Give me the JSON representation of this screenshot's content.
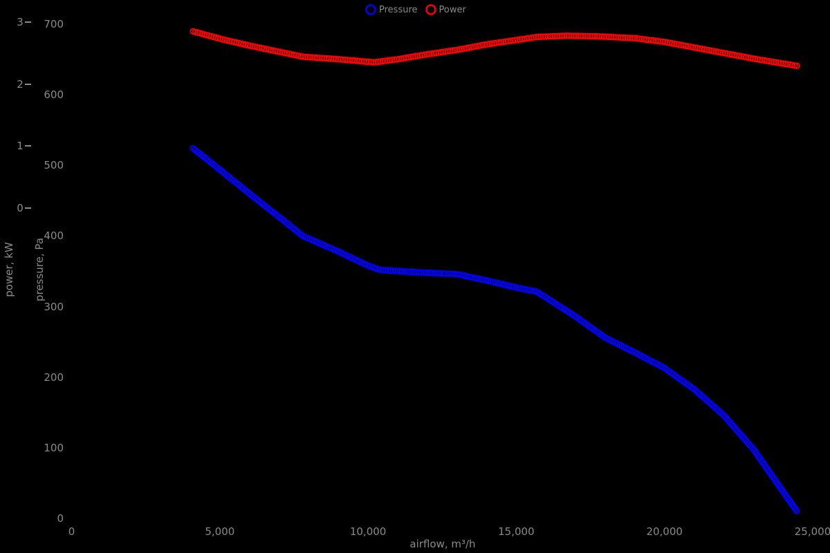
{
  "legend": {
    "items": [
      {
        "label": "Pressure",
        "color": "#0000ff"
      },
      {
        "label": "Power",
        "color": "#ff0000"
      }
    ]
  },
  "chart_data": {
    "type": "line",
    "title": "",
    "legend_position": "top-center",
    "grid": false,
    "background_color": "#000000",
    "text_color": "#8a8a8a",
    "marker_style": "hollow-circle-chain",
    "axes": {
      "x": {
        "title": "airflow, m³/h",
        "range": [
          0,
          25000
        ],
        "ticks": [
          0,
          5000,
          10000,
          15000,
          20000,
          25000
        ],
        "tick_labels": [
          "0",
          "5,000",
          "10,000",
          "15,000",
          "20,000",
          "25,000"
        ]
      },
      "y_pressure": {
        "title": "pressure, Pa",
        "range": [
          0,
          700
        ],
        "ticks": [
          0,
          100,
          200,
          300,
          400,
          500,
          600,
          700
        ],
        "tick_labels": [
          "0",
          "100",
          "200",
          "300",
          "400",
          "500",
          "600",
          "700"
        ]
      },
      "y_power": {
        "title": "power, kW",
        "range": [
          0,
          3
        ],
        "ticks": [
          0,
          1,
          2,
          3
        ],
        "tick_labels": [
          "0",
          "1",
          "2",
          "3"
        ]
      }
    },
    "series": [
      {
        "name": "Pressure",
        "axis": "y_pressure",
        "color": "#0000ff",
        "units": "Pa",
        "points": [
          [
            4100,
            524
          ],
          [
            5000,
            494
          ],
          [
            6000,
            460
          ],
          [
            7000,
            427
          ],
          [
            7800,
            400
          ],
          [
            9000,
            378
          ],
          [
            10000,
            358
          ],
          [
            10400,
            352
          ],
          [
            11500,
            349
          ],
          [
            13000,
            346
          ],
          [
            14000,
            337
          ],
          [
            15000,
            327
          ],
          [
            15700,
            321
          ],
          [
            17000,
            286
          ],
          [
            18000,
            256
          ],
          [
            19000,
            235
          ],
          [
            20000,
            213
          ],
          [
            21000,
            183
          ],
          [
            22000,
            146
          ],
          [
            23000,
            98
          ],
          [
            24000,
            38
          ],
          [
            24500,
            8
          ]
        ]
      },
      {
        "name": "Power",
        "axis": "y_power",
        "color": "#ff0000",
        "units": "kW",
        "points": [
          [
            4100,
            2.85
          ],
          [
            5100,
            2.72
          ],
          [
            6000,
            2.62
          ],
          [
            7000,
            2.52
          ],
          [
            7800,
            2.44
          ],
          [
            9000,
            2.4
          ],
          [
            10200,
            2.35
          ],
          [
            11000,
            2.4
          ],
          [
            12000,
            2.48
          ],
          [
            13000,
            2.55
          ],
          [
            14000,
            2.64
          ],
          [
            15000,
            2.71
          ],
          [
            15700,
            2.76
          ],
          [
            16700,
            2.78
          ],
          [
            17700,
            2.77
          ],
          [
            19000,
            2.74
          ],
          [
            20000,
            2.68
          ],
          [
            21000,
            2.59
          ],
          [
            22000,
            2.5
          ],
          [
            23000,
            2.41
          ],
          [
            24000,
            2.33
          ],
          [
            24500,
            2.29
          ]
        ]
      }
    ]
  }
}
